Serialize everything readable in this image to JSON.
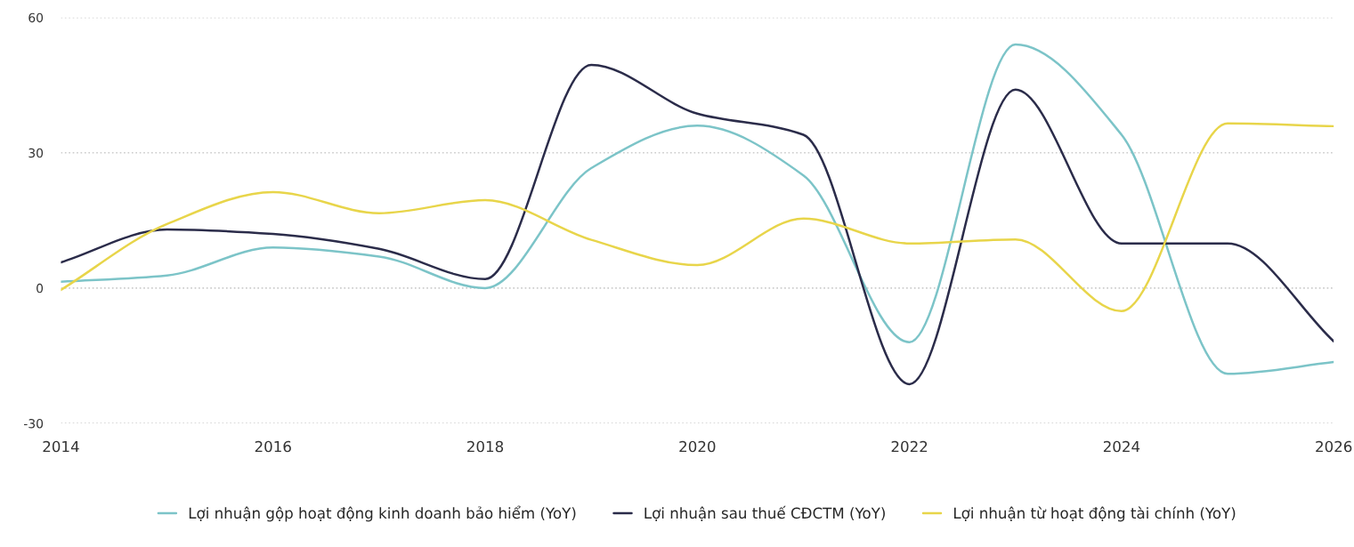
{
  "chart_data": {
    "type": "line",
    "x": [
      2014,
      2015,
      2016,
      2017,
      2018,
      2019,
      2020,
      2021,
      2022,
      2023,
      2024,
      2025,
      2026
    ],
    "series": [
      {
        "name": "Lợi nhuận gộp hoạt động kinh doanh bảo hiểm (YoY)",
        "color": "#7cc4c8",
        "values": [
          1.4,
          2.8,
          9,
          7,
          0,
          26.6,
          36,
          25,
          -12,
          54,
          34,
          -19,
          -16.4
        ]
      },
      {
        "name": "Lợi nhuận sau thuế CĐCTM (YoY)",
        "color": "#2b2c4a",
        "values": [
          5.7,
          13,
          12,
          8.7,
          2,
          49.5,
          38.7,
          34,
          -21.3,
          44,
          9.9,
          9.9,
          -11.8
        ]
      },
      {
        "name": "Lợi nhuận từ hoạt động tài chính (YoY)",
        "color": "#e8d54a",
        "values": [
          -0.4,
          14.2,
          21.3,
          16.6,
          19.5,
          10.7,
          5.1,
          15.4,
          9.9,
          10.8,
          -5.1,
          36.5,
          35.9
        ]
      }
    ],
    "xlim": [
      2014,
      2026
    ],
    "xticks": [
      2014,
      2016,
      2018,
      2020,
      2022,
      2024,
      2026
    ],
    "ylim": [
      -30,
      60
    ],
    "yticks": [
      -30,
      0,
      30,
      60
    ],
    "grid": "y",
    "legend": "bottom"
  }
}
